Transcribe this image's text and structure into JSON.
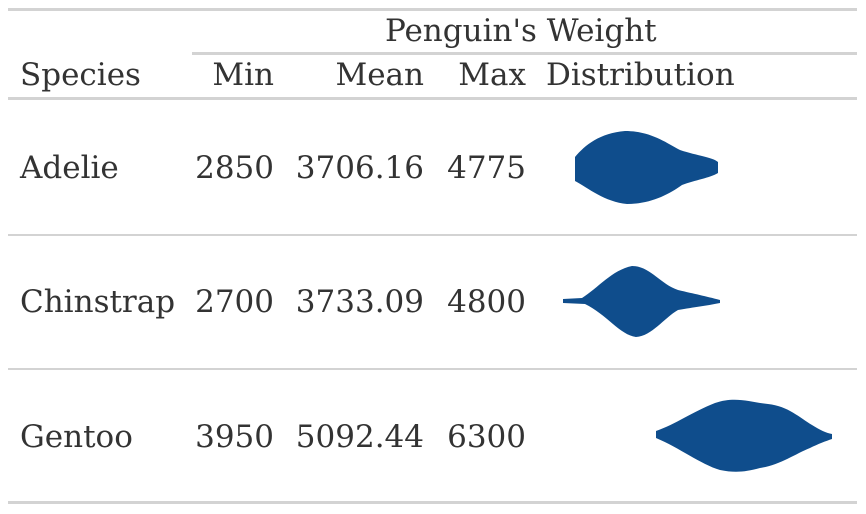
{
  "table": {
    "spanner_label": "Penguin's Weight",
    "columns": {
      "species": "Species",
      "min": "Min",
      "mean": "Mean",
      "max": "Max",
      "distribution": "Distribution"
    },
    "rows": [
      {
        "species": "Adelie",
        "min": "2850",
        "mean": "3706.16",
        "max": "4775"
      },
      {
        "species": "Chinstrap",
        "min": "2700",
        "mean": "3733.09",
        "max": "4800"
      },
      {
        "species": "Gentoo",
        "min": "3950",
        "mean": "5092.44",
        "max": "6300"
      }
    ]
  },
  "colors": {
    "violin_fill": "#0f4d8c",
    "rule": "#d3d3d3",
    "text": "#333333"
  }
}
